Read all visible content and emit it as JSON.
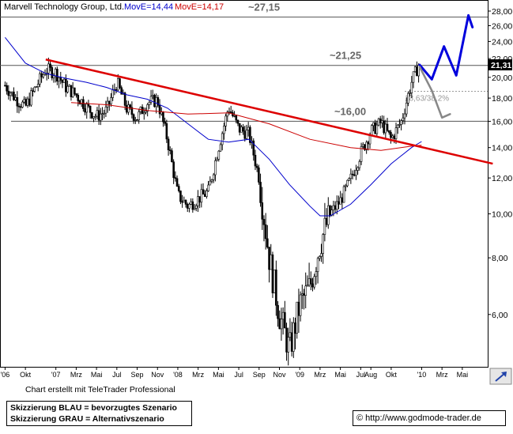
{
  "chart_data": {
    "type": "candlestick",
    "title": "Marvell Technology Group, Ltd.",
    "ma_labels": [
      {
        "text": "MovE=14,44",
        "color": "#0000cc"
      },
      {
        "text": "MovE=14,17",
        "color": "#cc0000"
      }
    ],
    "y_scale": "log",
    "ylim": [
      4.6,
      29.5
    ],
    "y_ticks": [
      {
        "value": 6,
        "label": "6,00"
      },
      {
        "value": 8,
        "label": "8,00"
      },
      {
        "value": 10,
        "label": "10,00"
      },
      {
        "value": 12,
        "label": "12,00"
      },
      {
        "value": 14,
        "label": "14,00"
      },
      {
        "value": 16,
        "label": "16,00"
      },
      {
        "value": 18,
        "label": "18,00"
      },
      {
        "value": 20,
        "label": "20,00"
      },
      {
        "value": 22,
        "label": "22,00"
      },
      {
        "value": 24,
        "label": "24,00"
      },
      {
        "value": 26,
        "label": "26,00"
      },
      {
        "value": 28,
        "label": "28,00"
      }
    ],
    "x_ticks": [
      {
        "t": 0,
        "label": "'06"
      },
      {
        "t": 2,
        "label": "Okt"
      },
      {
        "t": 5,
        "label": "'07"
      },
      {
        "t": 7,
        "label": "Mrz"
      },
      {
        "t": 9,
        "label": "Mai"
      },
      {
        "t": 11,
        "label": "Jul"
      },
      {
        "t": 13,
        "label": "Sep"
      },
      {
        "t": 15,
        "label": "Nov"
      },
      {
        "t": 17,
        "label": "'08"
      },
      {
        "t": 19,
        "label": "Mrz"
      },
      {
        "t": 21,
        "label": "Mai"
      },
      {
        "t": 23,
        "label": "Jul"
      },
      {
        "t": 25,
        "label": "Sep"
      },
      {
        "t": 27,
        "label": "Nov"
      },
      {
        "t": 29,
        "label": "'09"
      },
      {
        "t": 31,
        "label": "Mrz"
      },
      {
        "t": 33,
        "label": "Mai"
      },
      {
        "t": 35,
        "label": "Jul"
      },
      {
        "t": 36,
        "label": "Aug"
      },
      {
        "t": 38,
        "label": "Okt"
      },
      {
        "t": 41,
        "label": "'10"
      },
      {
        "t": 43,
        "label": "Mrz"
      },
      {
        "t": 45,
        "label": "Mai"
      }
    ],
    "x_range": [
      -0.5,
      47.5
    ],
    "price_path": [
      [
        0,
        19.2
      ],
      [
        1,
        18.0
      ],
      [
        2,
        17.2
      ],
      [
        3,
        19.0
      ],
      [
        4,
        20.8
      ],
      [
        5,
        20.5
      ],
      [
        6,
        19.0
      ],
      [
        7,
        18.3
      ],
      [
        8,
        17.2
      ],
      [
        9,
        16.4
      ],
      [
        10,
        16.9
      ],
      [
        11,
        19.5
      ],
      [
        12,
        17.0
      ],
      [
        13,
        16.3
      ],
      [
        14,
        17.6
      ],
      [
        15,
        17.8
      ],
      [
        16,
        14.5
      ],
      [
        17,
        11.0
      ],
      [
        18,
        10.4
      ],
      [
        19,
        10.8
      ],
      [
        20,
        11.2
      ],
      [
        21,
        14.0
      ],
      [
        22,
        17.2
      ],
      [
        23,
        15.4
      ],
      [
        24,
        15.0
      ],
      [
        25,
        12.0
      ],
      [
        26,
        8.0
      ],
      [
        27,
        6.0
      ],
      [
        28,
        5.0
      ],
      [
        29,
        6.3
      ],
      [
        30,
        6.9
      ],
      [
        31,
        8.6
      ],
      [
        32,
        10.0
      ],
      [
        33,
        10.7
      ],
      [
        34,
        11.9
      ],
      [
        35,
        13.6
      ],
      [
        36,
        15.2
      ],
      [
        37,
        15.9
      ],
      [
        38,
        14.6
      ],
      [
        39,
        16.0
      ],
      [
        40,
        19.5
      ],
      [
        40.7,
        21.3
      ]
    ],
    "moving_averages": [
      {
        "color": "#0000cc",
        "values": [
          [
            0,
            24.5
          ],
          [
            2,
            21.5
          ],
          [
            4,
            20.4
          ],
          [
            6,
            19.9
          ],
          [
            8,
            19.5
          ],
          [
            10,
            19.0
          ],
          [
            12,
            18.3
          ],
          [
            14,
            17.9
          ],
          [
            16,
            17.1
          ],
          [
            18,
            15.8
          ],
          [
            20,
            14.6
          ],
          [
            22,
            14.4
          ],
          [
            24,
            14.6
          ],
          [
            26,
            13.2
          ],
          [
            28,
            11.6
          ],
          [
            30,
            10.4
          ],
          [
            31,
            9.9
          ],
          [
            32,
            9.9
          ],
          [
            34,
            10.5
          ],
          [
            36,
            11.6
          ],
          [
            38,
            12.9
          ],
          [
            40,
            14.0
          ],
          [
            41,
            14.44
          ]
        ]
      },
      {
        "color": "#cc0000",
        "values": [
          [
            6.5,
            17.6
          ],
          [
            10,
            17.4
          ],
          [
            14,
            16.9
          ],
          [
            18,
            16.6
          ],
          [
            22,
            16.7
          ],
          [
            26,
            15.8
          ],
          [
            30,
            14.6
          ],
          [
            34,
            14.0
          ],
          [
            37,
            13.8
          ],
          [
            40,
            14.1
          ],
          [
            41,
            14.17
          ]
        ]
      }
    ],
    "trendline": {
      "color": "#dd0000",
      "from": [
        4,
        21.9
      ],
      "to": [
        48,
        12.9
      ]
    },
    "horizontal_lines": [
      {
        "value": 27.15,
        "label": "~27,15"
      },
      {
        "value": 21.25,
        "label": "~21,25"
      },
      {
        "value": 16.0,
        "label": "~16,00"
      }
    ],
    "retracement_line": {
      "value": 18.63,
      "label": "18,63/38,2%"
    },
    "last_price": {
      "value": 21.31,
      "label": "21,31"
    },
    "scenarios": [
      {
        "name": "BLAU",
        "color": "#0000dd",
        "path": [
          [
            40.8,
            21.3
          ],
          [
            42,
            19.8
          ],
          [
            43.2,
            23.4
          ],
          [
            44.4,
            20.2
          ],
          [
            45.6,
            27.4
          ],
          [
            46,
            25.8
          ]
        ]
      },
      {
        "name": "GRAU",
        "color": "#888888",
        "path": [
          [
            40.8,
            21.1
          ],
          [
            42,
            18.7
          ],
          [
            43,
            16.3
          ],
          [
            43.8,
            16.6
          ]
        ]
      }
    ]
  },
  "credit": "Chart erstellt mit TeleTrader Professional",
  "legend": {
    "line1": "Skizzierung BLAU = bevorzugtes Szenario",
    "line2": "Skizzierung GRAU = Alternativszenario"
  },
  "copyright": {
    "symbol": "©",
    "url": "http://www.godmode-trader.de"
  }
}
